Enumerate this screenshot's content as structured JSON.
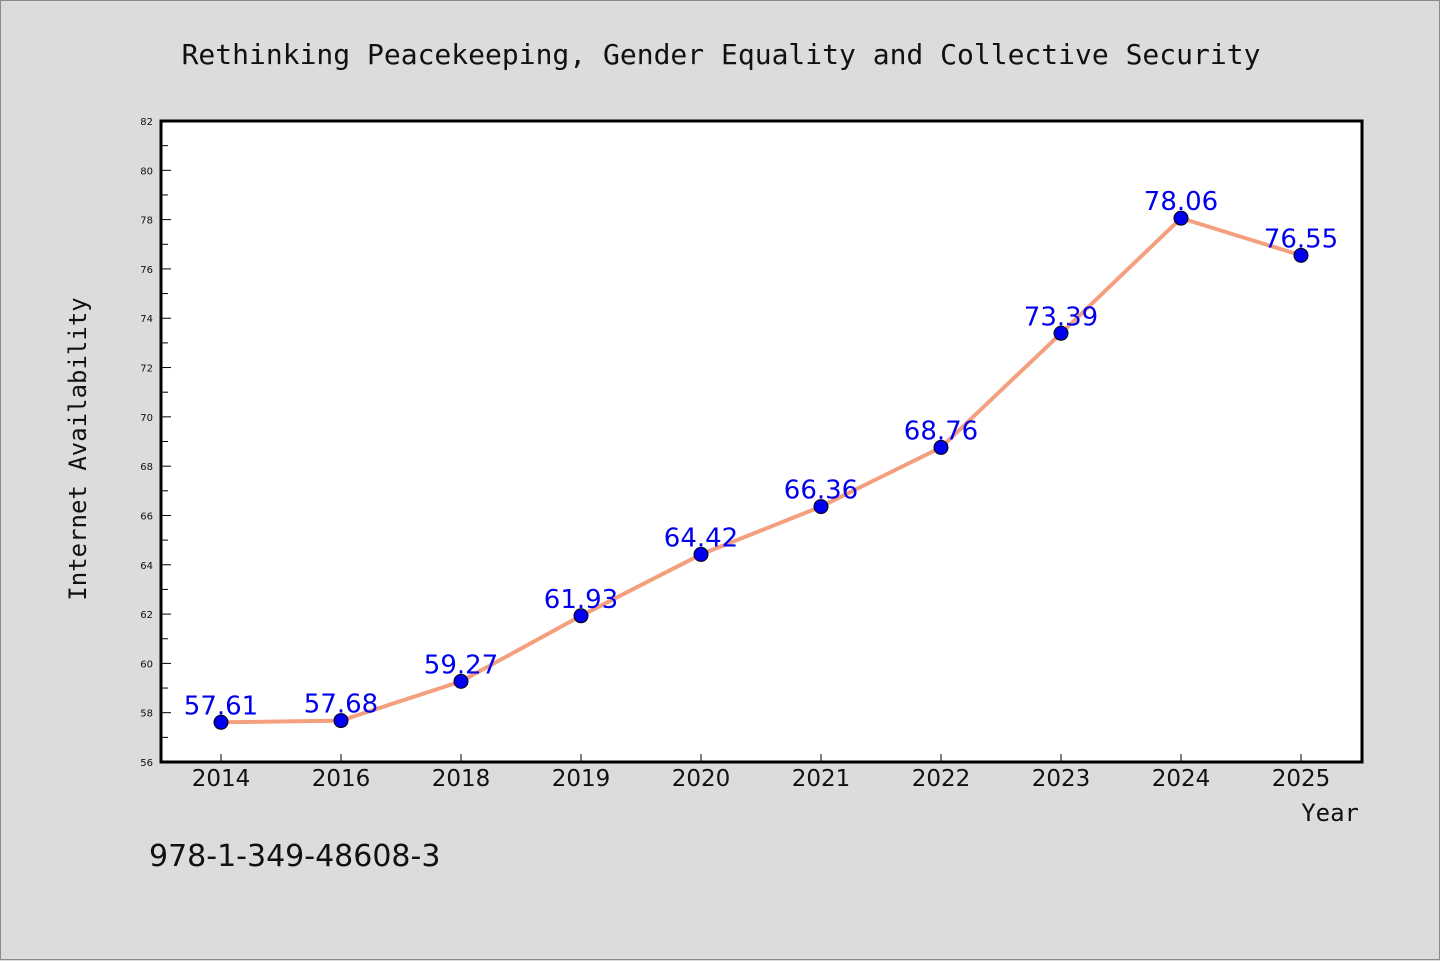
{
  "chart_data": {
    "type": "line",
    "title": "Rethinking Peacekeeping, Gender Equality and Collective Security",
    "xlabel": "Year",
    "ylabel": "Internet Availability",
    "categories": [
      "2014",
      "2016",
      "2018",
      "2019",
      "2020",
      "2021",
      "2022",
      "2023",
      "2024",
      "2025"
    ],
    "series": [
      {
        "values": [
          57.61,
          57.68,
          59.27,
          61.93,
          64.42,
          66.36,
          68.76,
          73.39,
          78.06,
          76.55
        ],
        "labels": [
          "57.61",
          "57.68",
          "59.27",
          "61.93",
          "64.42",
          "66.36",
          "68.76",
          "73.39",
          "78.06",
          "76.55"
        ]
      }
    ],
    "ylim": [
      56,
      82
    ],
    "yticks": [
      "56",
      "58",
      "60",
      "62",
      "64",
      "66",
      "68",
      "70",
      "72",
      "74",
      "76",
      "78",
      "80",
      "82"
    ],
    "grid": false,
    "legend": "none",
    "colors": {
      "line": "#f4a07f",
      "marker": "#0000ee",
      "label": "#0000ee",
      "background": "#dcdcdc",
      "plot_background": "#ffffff"
    }
  },
  "footer": {
    "isbn": "978-1-349-48608-3"
  }
}
